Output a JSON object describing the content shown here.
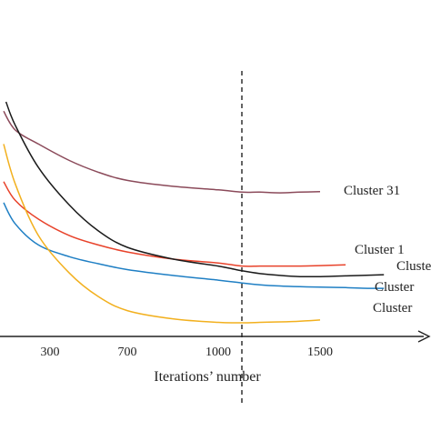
{
  "chart_data": {
    "type": "line",
    "title": "",
    "xlabel": "Iterations’ number",
    "ylabel": "",
    "x_ticks": [
      "300",
      "700",
      "1000",
      "1500"
    ],
    "x_tick_values": [
      300,
      700,
      1000,
      1500
    ],
    "xlim": [
      100,
      1920
    ],
    "ylim": [
      0,
      1
    ],
    "grid": false,
    "legend": "none",
    "reference_line": {
      "x": 1110,
      "style": "dashed"
    },
    "series": [
      {
        "name": "Cluster 31",
        "color": "#8b4a5a",
        "x": [
          100,
          150,
          250,
          400,
          550,
          700,
          850,
          1000,
          1110,
          1200,
          1300,
          1400,
          1500
        ],
        "y": [
          0.96,
          0.88,
          0.82,
          0.75,
          0.7,
          0.665,
          0.64,
          0.625,
          0.615,
          0.615,
          0.612,
          0.615,
          0.617
        ]
      },
      {
        "name": "Cluster 1",
        "color": "#e8422a",
        "x": [
          100,
          150,
          250,
          400,
          550,
          700,
          850,
          1000,
          1110,
          1200,
          1300,
          1400,
          1500,
          1600
        ],
        "y": [
          0.66,
          0.58,
          0.5,
          0.43,
          0.39,
          0.36,
          0.33,
          0.313,
          0.3,
          0.3,
          0.3,
          0.3,
          0.302,
          0.305
        ]
      },
      {
        "name": "Cluster",
        "color": "#1a1a1a",
        "x": [
          110,
          150,
          250,
          400,
          550,
          700,
          850,
          1000,
          1110,
          1200,
          1300,
          1400,
          1500,
          1600,
          1750
        ],
        "y": [
          1.0,
          0.9,
          0.72,
          0.56,
          0.45,
          0.38,
          0.33,
          0.3,
          0.28,
          0.268,
          0.26,
          0.255,
          0.255,
          0.258,
          0.263
        ]
      },
      {
        "name": "Cluster",
        "color": "#1f7fc4",
        "x": [
          100,
          150,
          250,
          400,
          550,
          700,
          850,
          1000,
          1110,
          1200,
          1300,
          1400,
          1500,
          1600,
          1700,
          1750
        ],
        "y": [
          0.57,
          0.48,
          0.39,
          0.34,
          0.31,
          0.285,
          0.26,
          0.24,
          0.228,
          0.22,
          0.215,
          0.212,
          0.21,
          0.208,
          0.205,
          0.205
        ]
      },
      {
        "name": "Cluster",
        "color": "#f2b01e",
        "x": [
          100,
          150,
          250,
          400,
          550,
          700,
          850,
          1000,
          1110,
          1200,
          1300,
          1400,
          1500
        ],
        "y": [
          0.82,
          0.65,
          0.43,
          0.27,
          0.17,
          0.11,
          0.075,
          0.06,
          0.058,
          0.06,
          0.062,
          0.065,
          0.07
        ]
      }
    ]
  }
}
